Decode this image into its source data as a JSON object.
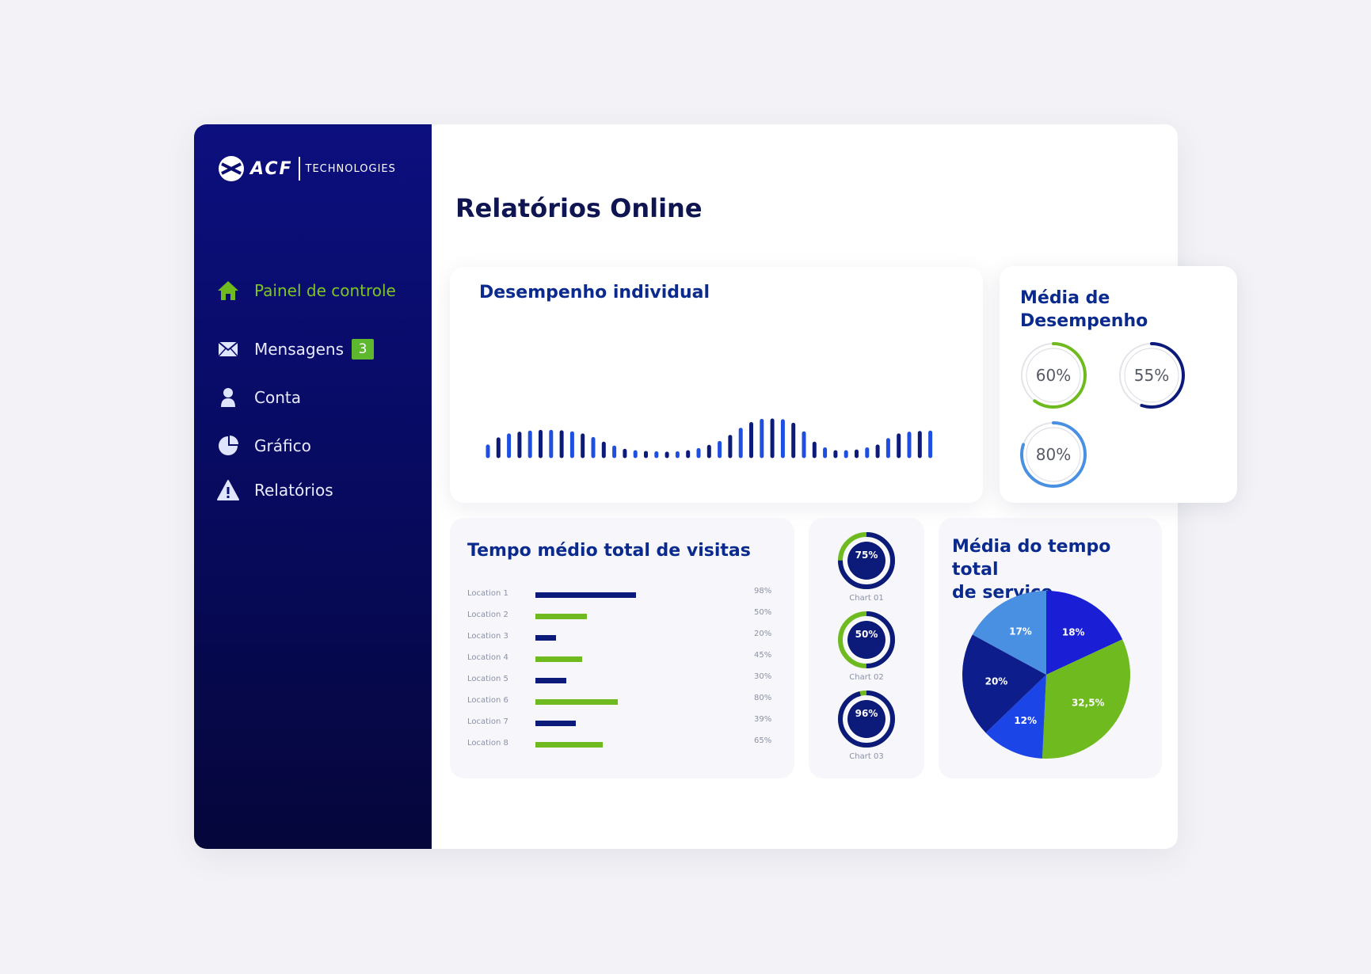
{
  "brand": {
    "name": "ACF",
    "sub": "TECHNOLOGIES"
  },
  "page": {
    "title": "Relatórios Online"
  },
  "sidebar": {
    "items": [
      {
        "label": "Painel de controle",
        "icon": "home-icon",
        "active": true
      },
      {
        "label": "Mensagens",
        "icon": "mail-icon",
        "badge": "3"
      },
      {
        "label": "Conta",
        "icon": "user-icon"
      },
      {
        "label": "Gráfico",
        "icon": "pie-chart-icon"
      },
      {
        "label": "Relatórios",
        "icon": "warning-icon"
      }
    ]
  },
  "colors": {
    "navy": "#0c1a7a",
    "blue": "#1f4fe0",
    "green": "#6fbb1f",
    "sky": "#4a90e2",
    "sidebar": "#0a0d70",
    "title": "#0b2a8e"
  },
  "performance": {
    "title": "Desempenho individual",
    "chart_data": {
      "type": "bar",
      "values": [
        27,
        47,
        58,
        63,
        66,
        68,
        68,
        67,
        64,
        58,
        48,
        35,
        24,
        15,
        11,
        9,
        8,
        7,
        8,
        11,
        17,
        26,
        37,
        54,
        74,
        90,
        99,
        100,
        98,
        88,
        64,
        35,
        19,
        11,
        11,
        13,
        19,
        27,
        45,
        58,
        63,
        65,
        66
      ],
      "ylim": [
        0,
        100
      ]
    }
  },
  "average": {
    "title": "Média de Desempenho",
    "rings": [
      {
        "label": "60%",
        "value": 60,
        "color": "#6fbb1f"
      },
      {
        "label": "55%",
        "value": 55,
        "color": "#0c1a7a"
      },
      {
        "label": "80%",
        "value": 80,
        "color": "#4a90e2"
      }
    ]
  },
  "visits": {
    "title": "Tempo médio total de visitas",
    "chart_data": {
      "type": "bar",
      "categories": [
        "Location 1",
        "Location 2",
        "Location 3",
        "Location 4",
        "Location 5",
        "Location 6",
        "Location 7",
        "Location 8"
      ],
      "values": [
        98,
        50,
        20,
        45,
        30,
        80,
        39,
        65
      ],
      "labels": [
        "98%",
        "50%",
        "20%",
        "45%",
        "30%",
        "80%",
        "39%",
        "65%"
      ],
      "ylim": [
        0,
        100
      ]
    }
  },
  "mini_charts": [
    {
      "value": "75%",
      "caption": "Chart 01",
      "pct": 75
    },
    {
      "value": "50%",
      "caption": "Chart 02",
      "pct": 50
    },
    {
      "value": "96%",
      "caption": "Chart 03",
      "pct": 96
    }
  ],
  "service": {
    "title_line1": "Média do tempo total",
    "title_line2": "de serviço",
    "chart_data": {
      "type": "pie",
      "slices": [
        {
          "label": "18%",
          "value": 18,
          "color": "#1a1fd6"
        },
        {
          "label": "32,5%",
          "value": 32.5,
          "color": "#6fbb1f"
        },
        {
          "label": "12%",
          "value": 12,
          "color": "#1c45e8"
        },
        {
          "label": "20%",
          "value": 20,
          "color": "#0d1e8c"
        },
        {
          "label": "17%",
          "value": 17,
          "color": "#4a90e2"
        }
      ]
    }
  }
}
